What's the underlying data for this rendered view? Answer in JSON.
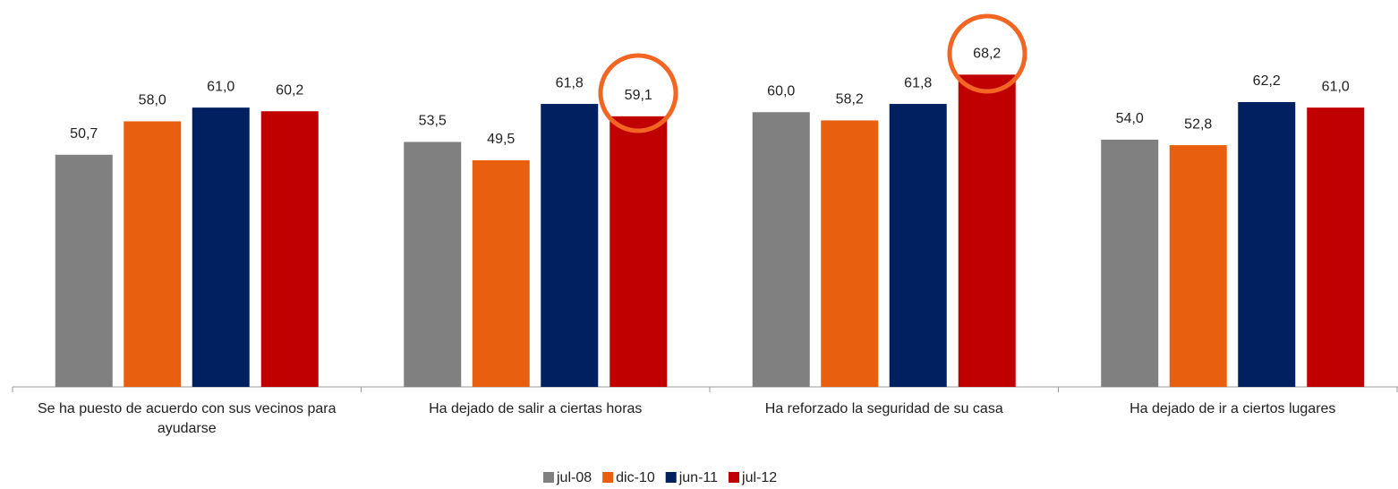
{
  "chart_data": {
    "type": "bar",
    "categories": [
      "Se ha puesto de acuerdo con sus vecinos para ayudarse",
      "Ha dejado de salir a ciertas horas",
      "Ha reforzado la seguridad de su casa",
      "Ha dejado de ir a ciertos lugares"
    ],
    "series": [
      {
        "name": "jul-08",
        "color": "#808080",
        "values": [
          50.7,
          53.5,
          60.0,
          54.0
        ],
        "value_labels": [
          "50,7",
          "53,5",
          "60,0",
          "54,0"
        ]
      },
      {
        "name": "dic-10",
        "color": "#e8600f",
        "values": [
          58.0,
          49.5,
          58.2,
          52.8
        ],
        "value_labels": [
          "58,0",
          "49,5",
          "58,2",
          "52,8"
        ]
      },
      {
        "name": "jun-11",
        "color": "#002060",
        "values": [
          61.0,
          61.8,
          61.8,
          62.2
        ],
        "value_labels": [
          "61,0",
          "61,8",
          "61,8",
          "62,2"
        ]
      },
      {
        "name": "jul-12",
        "color": "#c00000",
        "values": [
          60.2,
          59.1,
          68.2,
          61.0
        ],
        "value_labels": [
          "60,2",
          "59,1",
          "68,2",
          "61,0"
        ]
      }
    ],
    "ylim": [
      0,
      80
    ],
    "legend": "bottom"
  }
}
